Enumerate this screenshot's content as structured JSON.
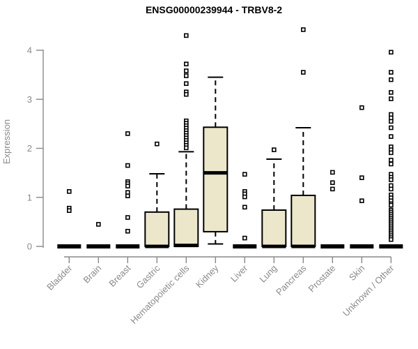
{
  "page": {
    "title": "ENSG00000239944 - TRBV8-2"
  },
  "chart_data": {
    "type": "boxplot",
    "title": "ENSG00000239944 - TRBV8-2",
    "xlabel": "",
    "ylabel": "Expression",
    "ylim": [
      0,
      4
    ],
    "yticks": [
      0,
      1,
      2,
      3,
      4
    ],
    "grid": false,
    "legend": "none",
    "colors": {
      "box_fill": "#ece7ca",
      "box_stroke": "#000000",
      "axis": "#888888",
      "tick_label": "#8a8a8a",
      "title": "#000000"
    },
    "categories": [
      "Bladder",
      "Brain",
      "Breast",
      "Gastric",
      "Hematopoietic cells",
      "Kidney",
      "Liver",
      "Lung",
      "Pancreas",
      "Prostate",
      "Skin",
      "Unknown / Other"
    ],
    "series": [
      {
        "label": "Bladder",
        "q1": 0,
        "median": 0,
        "q3": 0,
        "whisker_low": 0,
        "whisker_high": 0,
        "outliers": [
          1.12,
          0.78,
          0.73
        ]
      },
      {
        "label": "Brain",
        "q1": 0,
        "median": 0,
        "q3": 0,
        "whisker_low": 0,
        "whisker_high": 0,
        "outliers": [
          0.45
        ]
      },
      {
        "label": "Breast",
        "q1": 0,
        "median": 0,
        "q3": 0,
        "whisker_low": 0,
        "whisker_high": 0,
        "outliers": [
          2.3,
          1.65,
          1.32,
          1.28,
          1.23,
          1.1,
          1.03,
          0.59,
          0.31
        ]
      },
      {
        "label": "Gastric",
        "q1": 0,
        "median": 0,
        "q3": 0.7,
        "whisker_low": 0,
        "whisker_high": 1.48,
        "outliers": [
          2.09
        ]
      },
      {
        "label": "Hematopoietic cells",
        "q1": 0,
        "median": 0.02,
        "q3": 0.76,
        "whisker_low": 0,
        "whisker_high": 1.93,
        "outliers": [
          4.3,
          3.72,
          3.58,
          3.48,
          3.32,
          3.15,
          3.1,
          2.56,
          2.51,
          2.46,
          2.41,
          2.36,
          2.31,
          2.26,
          2.21,
          2.16,
          2.11,
          2.06,
          2.01
        ]
      },
      {
        "label": "Kidney",
        "q1": 0.3,
        "median": 1.5,
        "q3": 2.43,
        "whisker_low": 0.05,
        "whisker_high": 3.45,
        "outliers": []
      },
      {
        "label": "Liver",
        "q1": 0,
        "median": 0,
        "q3": 0,
        "whisker_low": 0,
        "whisker_high": 0,
        "outliers": [
          1.47,
          1.12,
          1.07,
          1.01,
          0.8,
          0.17
        ]
      },
      {
        "label": "Lung",
        "q1": 0,
        "median": 0,
        "q3": 0.74,
        "whisker_low": 0,
        "whisker_high": 1.78,
        "outliers": [
          1.97
        ]
      },
      {
        "label": "Pancreas",
        "q1": 0,
        "median": 0,
        "q3": 1.04,
        "whisker_low": 0,
        "whisker_high": 2.42,
        "outliers": [
          4.42,
          3.55
        ]
      },
      {
        "label": "Prostate",
        "q1": 0,
        "median": 0,
        "q3": 0,
        "whisker_low": 0,
        "whisker_high": 0,
        "outliers": [
          1.51,
          1.3,
          1.17
        ]
      },
      {
        "label": "Skin",
        "q1": 0,
        "median": 0,
        "q3": 0,
        "whisker_low": 0,
        "whisker_high": 0,
        "outliers": [
          2.83,
          1.4,
          0.93
        ]
      },
      {
        "label": "Unknown / Other",
        "q1": 0,
        "median": 0,
        "q3": 0,
        "whisker_low": 0,
        "whisker_high": 0,
        "outliers": [
          3.96,
          3.55,
          3.4,
          3.14,
          3.01,
          2.69,
          2.62,
          2.55,
          2.42,
          2.24,
          2.03,
          1.97,
          1.91,
          1.76,
          1.68,
          1.47,
          1.41,
          1.36,
          1.24,
          1.17,
          1.05,
          0.99,
          0.93,
          0.87,
          0.84,
          0.74,
          0.7,
          0.66,
          0.62,
          0.58,
          0.54,
          0.5,
          0.46,
          0.42,
          0.38,
          0.34,
          0.3,
          0.26,
          0.22,
          0.18,
          0.14
        ]
      }
    ]
  }
}
